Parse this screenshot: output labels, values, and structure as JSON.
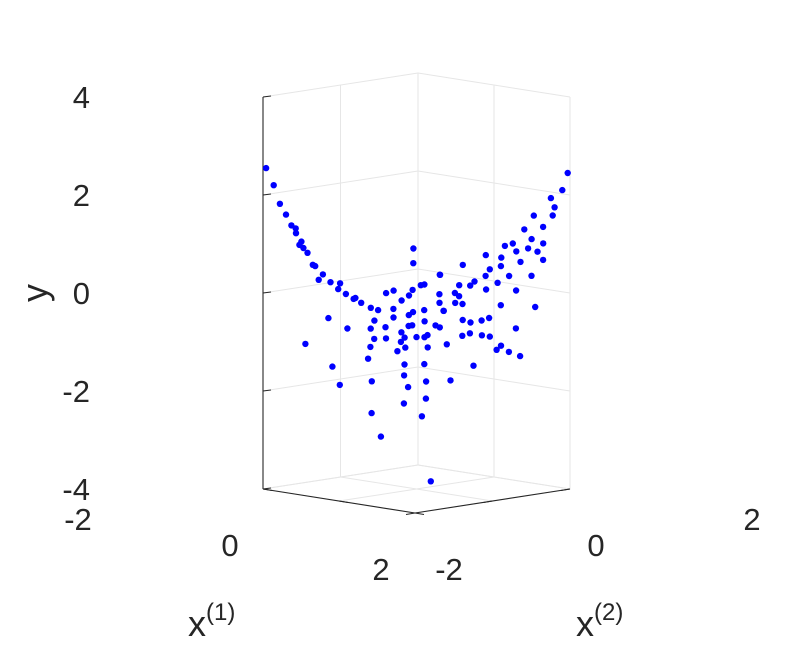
{
  "chart_data": {
    "type": "scatter",
    "view": "3d",
    "marker_color": "#0000ff",
    "grid": true,
    "axes": {
      "x1": {
        "label_base": "x",
        "label_sup": "(1)",
        "range": [
          -2,
          2
        ],
        "ticks": [
          "-2",
          "0",
          "2"
        ]
      },
      "x2": {
        "label_base": "x",
        "label_sup": "(2)",
        "range": [
          -2,
          2
        ],
        "ticks": [
          "-2",
          "0",
          "2"
        ]
      },
      "y": {
        "label": "y",
        "range": [
          -4,
          4
        ],
        "ticks": [
          "-4",
          "-2",
          "0",
          "2",
          "4"
        ]
      }
    },
    "points": [
      [
        -1.96,
        -1.96,
        2.55
      ],
      [
        -1.86,
        -1.86,
        2.2
      ],
      [
        -1.78,
        -1.78,
        1.82
      ],
      [
        -1.7,
        -1.7,
        1.6
      ],
      [
        -1.63,
        -1.63,
        1.38
      ],
      [
        -1.57,
        -1.57,
        1.22
      ],
      [
        -1.5,
        -1.5,
        1.05
      ],
      [
        -1.42,
        -1.42,
        0.82
      ],
      [
        -1.32,
        -1.32,
        0.55
      ],
      [
        -1.22,
        -1.22,
        0.38
      ],
      [
        -1.12,
        -1.12,
        0.22
      ],
      [
        -1.02,
        -1.02,
        0.08
      ],
      [
        -0.92,
        -0.92,
        -0.02
      ],
      [
        -0.82,
        -0.82,
        -0.12
      ],
      [
        -0.72,
        -0.72,
        -0.2
      ],
      [
        -1.3,
        -1.0,
        -0.55
      ],
      [
        -1.5,
        -0.7,
        -1.6
      ],
      [
        -1.7,
        -1.2,
        -1.1
      ],
      [
        -1.1,
        -0.9,
        -1.9
      ],
      [
        -0.8,
        -1.0,
        -0.7
      ],
      [
        -0.5,
        -0.5,
        -0.35
      ],
      [
        -0.3,
        -0.3,
        -0.5
      ],
      [
        -0.1,
        -0.1,
        -0.45
      ],
      [
        0.1,
        0.1,
        -0.35
      ],
      [
        0.3,
        0.3,
        -0.2
      ],
      [
        0.5,
        0.5,
        0.0
      ],
      [
        0.7,
        0.7,
        0.15
      ],
      [
        0.9,
        0.9,
        0.35
      ],
      [
        1.1,
        1.1,
        0.55
      ],
      [
        1.3,
        1.3,
        0.85
      ],
      [
        1.5,
        1.5,
        1.1
      ],
      [
        1.65,
        1.65,
        1.35
      ],
      [
        1.8,
        1.8,
        1.75
      ],
      [
        1.9,
        1.9,
        2.1
      ],
      [
        1.97,
        1.97,
        2.45
      ],
      [
        -0.6,
        0.2,
        -0.9
      ],
      [
        -0.4,
        0.6,
        -0.7
      ],
      [
        -0.2,
        0.9,
        -0.5
      ],
      [
        0.0,
        1.1,
        -0.2
      ],
      [
        0.2,
        1.3,
        0.1
      ],
      [
        0.4,
        1.5,
        0.35
      ],
      [
        0.6,
        1.6,
        0.6
      ],
      [
        0.8,
        1.7,
        0.9
      ],
      [
        1.0,
        1.8,
        1.2
      ],
      [
        1.2,
        1.85,
        1.5
      ],
      [
        0.2,
        -0.6,
        -0.9
      ],
      [
        0.5,
        -0.8,
        -1.3
      ],
      [
        0.8,
        -1.0,
        -1.7
      ],
      [
        1.0,
        -1.3,
        -1.4
      ],
      [
        1.3,
        -1.6,
        -1.9
      ],
      [
        -0.3,
        -0.2,
        -1.2
      ],
      [
        -0.1,
        0.3,
        -1.5
      ],
      [
        0.15,
        0.1,
        -1.8
      ],
      [
        0.35,
        -0.1,
        -2.1
      ],
      [
        0.55,
        -0.4,
        -2.4
      ],
      [
        -0.8,
        0.4,
        -0.3
      ],
      [
        -0.6,
        0.7,
        0.0
      ],
      [
        -0.4,
        1.0,
        0.2
      ],
      [
        -0.9,
        0.8,
        0.4
      ],
      [
        -1.1,
        1.0,
        0.65
      ],
      [
        0.9,
        0.3,
        -0.8
      ],
      [
        1.1,
        0.6,
        -0.5
      ],
      [
        1.3,
        0.9,
        -0.2
      ],
      [
        1.5,
        1.1,
        0.1
      ],
      [
        1.7,
        1.3,
        0.4
      ],
      [
        0.0,
        -0.8,
        -0.6
      ],
      [
        0.3,
        -0.6,
        -0.8
      ],
      [
        0.6,
        -0.3,
        -1.0
      ],
      [
        -0.4,
        -0.7,
        -0.9
      ],
      [
        -0.7,
        -0.4,
        -0.6
      ],
      [
        0.2,
        0.5,
        -0.4
      ],
      [
        0.4,
        0.8,
        -0.6
      ],
      [
        0.7,
        1.0,
        -0.9
      ],
      [
        1.0,
        1.2,
        -1.1
      ],
      [
        1.3,
        1.4,
        -1.3
      ],
      [
        -0.2,
        0.4,
        0.1
      ],
      [
        0.0,
        0.6,
        0.3
      ],
      [
        0.3,
        0.9,
        0.5
      ],
      [
        0.6,
        1.2,
        0.7
      ],
      [
        0.9,
        1.4,
        0.9
      ],
      [
        -0.5,
        -0.1,
        0.0
      ],
      [
        -0.3,
        0.1,
        -0.1
      ],
      [
        0.1,
        -0.2,
        0.1
      ],
      [
        0.4,
        0.2,
        0.0
      ],
      [
        0.7,
        0.5,
        -0.2
      ],
      [
        -1.2,
        -0.4,
        -0.2
      ],
      [
        -1.0,
        -0.2,
        -0.4
      ],
      [
        -0.8,
        0.0,
        -0.1
      ],
      [
        -1.4,
        -0.6,
        0.1
      ],
      [
        -0.6,
        -0.6,
        -1.1
      ],
      [
        1.2,
        -0.3,
        -1.6
      ],
      [
        1.5,
        0.0,
        -1.3
      ],
      [
        1.7,
        0.4,
        -1.0
      ],
      [
        1.8,
        0.8,
        -0.6
      ],
      [
        1.9,
        1.2,
        -0.2
      ],
      [
        0.1,
        0.9,
        -0.3
      ],
      [
        0.3,
        1.1,
        -0.7
      ],
      [
        0.5,
        1.4,
        -1.0
      ],
      [
        0.8,
        1.6,
        -1.3
      ],
      [
        -0.1,
        1.2,
        0.0
      ],
      [
        -0.9,
        -0.3,
        -0.8
      ],
      [
        -0.7,
        -0.1,
        -1.0
      ],
      [
        -0.5,
        0.2,
        -1.2
      ],
      [
        -0.3,
        0.5,
        -1.0
      ],
      [
        -0.1,
        0.7,
        -0.8
      ],
      [
        0.6,
        -0.7,
        -0.5
      ],
      [
        0.8,
        -0.5,
        -0.7
      ],
      [
        1.0,
        -0.2,
        -0.9
      ],
      [
        1.2,
        0.2,
        -0.7
      ],
      [
        1.4,
        0.5,
        -0.4
      ],
      [
        0.0,
        0.0,
        -0.9
      ],
      [
        0.2,
        -0.4,
        -0.6
      ],
      [
        -0.2,
        -0.4,
        -0.3
      ],
      [
        0.5,
        0.0,
        -0.6
      ],
      [
        -0.5,
        0.4,
        -0.5
      ],
      [
        1.6,
        1.7,
        1.0
      ],
      [
        1.75,
        1.55,
        0.7
      ],
      [
        1.4,
        1.75,
        0.8
      ],
      [
        1.85,
        1.7,
        1.6
      ],
      [
        1.6,
        1.9,
        1.9
      ],
      [
        -1.55,
        -1.4,
        0.9
      ],
      [
        -1.45,
        -1.6,
        1.0
      ],
      [
        -1.25,
        -1.45,
        0.6
      ],
      [
        -1.65,
        -1.5,
        1.3
      ],
      [
        -1.35,
        -1.2,
        0.25
      ],
      [
        0.6,
        1.8,
        0.2
      ],
      [
        0.4,
        1.7,
        0.05
      ],
      [
        0.8,
        1.9,
        0.5
      ],
      [
        0.2,
        1.6,
        -0.1
      ],
      [
        1.0,
        1.9,
        0.8
      ],
      [
        -0.05,
        -1.2,
        -1.2
      ],
      [
        0.25,
        -1.4,
        -1.6
      ],
      [
        0.45,
        -1.6,
        -2.2
      ],
      [
        1.6,
        -1.2,
        -3.5
      ],
      [
        0.9,
        -1.8,
        -2.6
      ]
    ]
  }
}
